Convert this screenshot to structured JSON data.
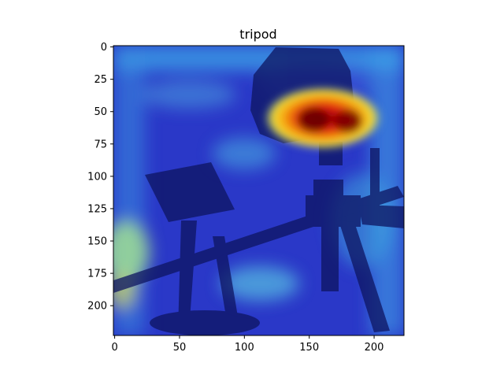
{
  "figure": {
    "title": "tripod",
    "x_ticks": [
      "0",
      "50",
      "100",
      "150",
      "200"
    ],
    "y_ticks": [
      "0",
      "25",
      "50",
      "75",
      "100",
      "125",
      "150",
      "175",
      "200"
    ],
    "x_range": [
      0,
      224
    ],
    "y_range": [
      0,
      224
    ],
    "colors": {
      "heat_low": "#1e2fd0",
      "heat_mid": "#46d6e6",
      "heat_high": "#d0100a",
      "heat_peak": "#f5d20a"
    }
  }
}
